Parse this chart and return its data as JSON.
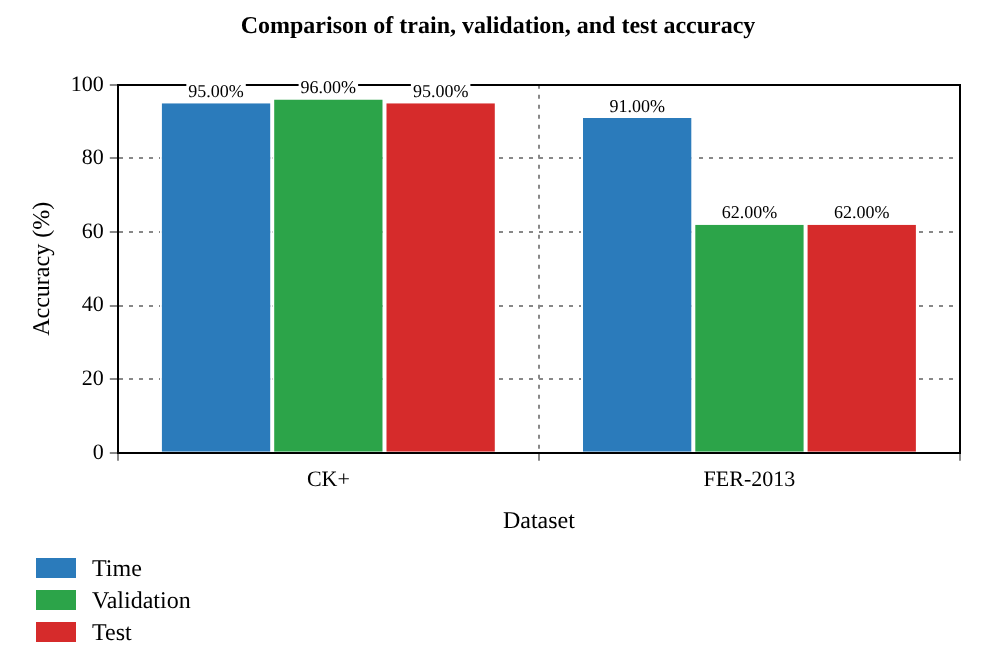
{
  "chart_data": {
    "type": "bar",
    "title": "Comparison of train, validation, and test accuracy",
    "xlabel": "Dataset",
    "ylabel": "Accuracy (%)",
    "categories": [
      "CK+",
      "FER-2013"
    ],
    "series": [
      {
        "name": "Time",
        "color": "#2b7bbb",
        "values": [
          95,
          91
        ],
        "value_labels": [
          "95.00%",
          "91.00%"
        ]
      },
      {
        "name": "Validation",
        "color": "#2ca449",
        "values": [
          96,
          62
        ],
        "value_labels": [
          "96.00%",
          "62.00%"
        ]
      },
      {
        "name": "Test",
        "color": "#d62b2b",
        "values": [
          95,
          62
        ],
        "value_labels": [
          "95.00%",
          "62.00%"
        ]
      }
    ],
    "ylim": [
      0,
      100
    ],
    "yticks": [
      0,
      20,
      40,
      60,
      80,
      100
    ],
    "grid": true,
    "legend": "bottom left"
  }
}
